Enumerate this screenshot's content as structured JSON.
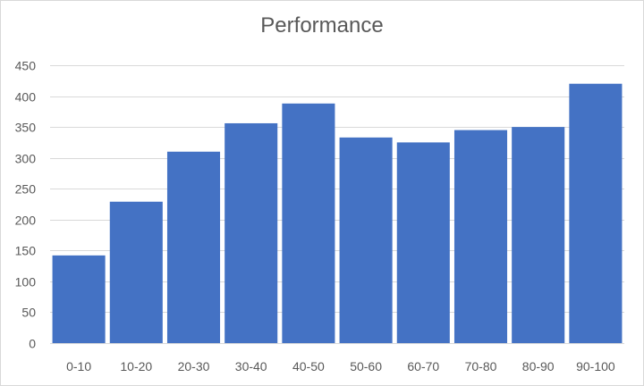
{
  "chart_data": {
    "type": "bar",
    "title": "Performance",
    "xlabel": "",
    "ylabel": "",
    "categories": [
      "0-10",
      "10-20",
      "20-30",
      "30-40",
      "40-50",
      "50-60",
      "60-70",
      "70-80",
      "80-90",
      "90-100"
    ],
    "values": [
      142,
      229,
      310,
      356,
      388,
      333,
      325,
      345,
      350,
      420
    ],
    "ylim": [
      0,
      450
    ],
    "yticks": [
      0,
      50,
      100,
      150,
      200,
      250,
      300,
      350,
      400,
      450
    ],
    "grid": true,
    "legend": "none",
    "colors": {
      "bar": "#4472C4",
      "grid": "#d9d9d9",
      "text": "#595959",
      "border": "#d9d9d9"
    }
  }
}
